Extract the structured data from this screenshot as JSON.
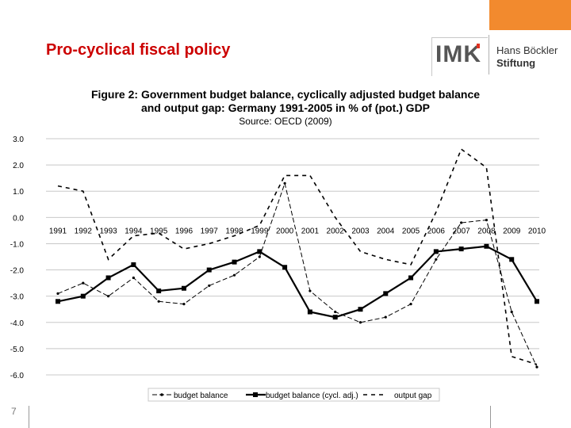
{
  "slide": {
    "title": "Pro-cyclical fiscal policy",
    "page_number": "7",
    "logo_imk": "IMK",
    "logo_hbs_line1": "Hans Böckler",
    "logo_hbs_line2": "Stiftung",
    "accent_color": "#cc0000",
    "orange_color": "#f28a2e"
  },
  "chart_data": {
    "type": "line",
    "title_line1": "Figure 2: Government budget balance, cyclically adjusted budget balance",
    "title_line2": "and output gap: Germany 1991-2005 in % of (pot.) GDP",
    "source": "Source: OECD (2009)",
    "xlabel": "",
    "ylabel": "",
    "categories": [
      "1991",
      "1992",
      "1993",
      "1994",
      "1995",
      "1996",
      "1997",
      "1998",
      "1999",
      "2000",
      "2001",
      "2002",
      "2003",
      "2004",
      "2005",
      "2006",
      "2007",
      "2008",
      "2009",
      "2010"
    ],
    "y_ticks": [
      "3.0",
      "2.0",
      "1.0",
      "0.0",
      "-1.0",
      "-2.0",
      "-3.0",
      "-4.0",
      "-5.0",
      "-6.0"
    ],
    "ylim": [
      -6,
      3
    ],
    "grid": true,
    "legend_position": "bottom",
    "series": [
      {
        "name": "budget balance",
        "style": "dash-dot-small-markers",
        "values": [
          -2.9,
          -2.5,
          -3.0,
          -2.3,
          -3.2,
          -3.3,
          -2.6,
          -2.2,
          -1.5,
          1.3,
          -2.8,
          -3.6,
          -4.0,
          -3.8,
          -3.3,
          -1.6,
          -0.2,
          -0.1,
          -3.6,
          -5.7
        ]
      },
      {
        "name": "budget balance (cycl. adj.)",
        "style": "solid-square-markers",
        "values": [
          -3.2,
          -3.0,
          -2.3,
          -1.8,
          -2.8,
          -2.7,
          -2.0,
          -1.7,
          -1.3,
          -1.9,
          -3.6,
          -3.8,
          -3.5,
          -2.9,
          -2.3,
          -1.3,
          -1.2,
          -1.1,
          -1.6,
          -3.2
        ]
      },
      {
        "name": "output gap",
        "style": "dashed",
        "values": [
          1.2,
          1.0,
          -1.6,
          -0.7,
          -0.6,
          -1.2,
          -1.0,
          -0.7,
          -0.3,
          1.6,
          1.6,
          0.0,
          -1.3,
          -1.6,
          -1.8,
          0.2,
          2.6,
          1.9,
          -5.3,
          -5.6
        ]
      }
    ]
  }
}
